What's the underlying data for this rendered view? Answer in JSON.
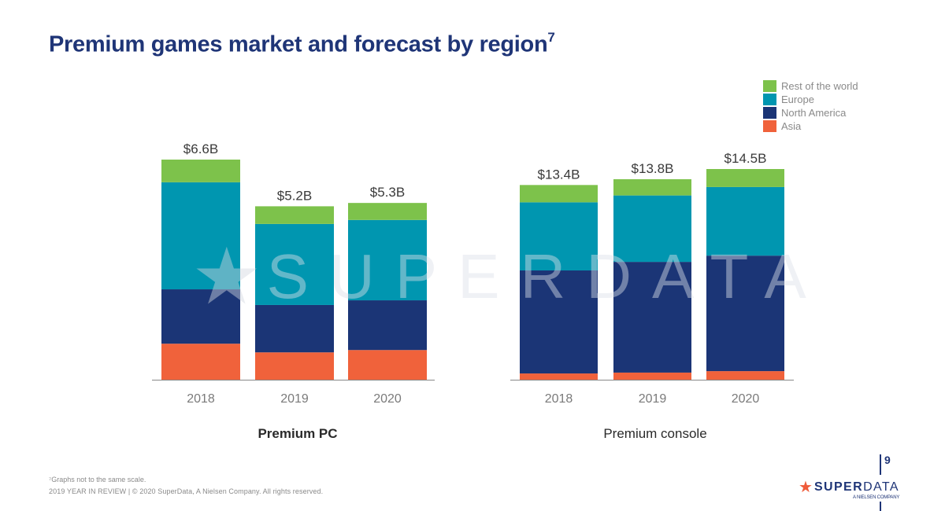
{
  "title": "Premium games market and forecast by region",
  "title_footnote_marker": "7",
  "legend": [
    {
      "label": "Rest of the world",
      "color": "#7dc24b"
    },
    {
      "label": "Europe",
      "color": "#0096b0"
    },
    {
      "label": "North America",
      "color": "#1b3576"
    },
    {
      "label": "Asia",
      "color": "#f0623b"
    }
  ],
  "watermark": {
    "icon": "star-icon",
    "text": "SUPERDATA"
  },
  "footnote": "⁷Graphs not to the same scale.",
  "footer": "2019 YEAR IN REVIEW  |  © 2020 SuperData, A Nielsen Company. All rights reserved.",
  "page_number": "9",
  "logo": {
    "icon": "star-icon",
    "bold": "SUPER",
    "light": "DATA",
    "sub": "A NIELSEN COMPANY"
  },
  "chart_data": [
    {
      "type": "bar",
      "stacked": true,
      "title": "Premium PC",
      "xlabel": "",
      "ylabel": "",
      "categories": [
        "2018",
        "2019",
        "2020"
      ],
      "totals_labels": [
        "$6.6B",
        "$5.2B",
        "$5.3B"
      ],
      "totals": [
        6.6,
        5.2,
        5.3
      ],
      "series": [
        {
          "name": "Asia",
          "values": [
            1.08,
            0.82,
            0.89
          ]
        },
        {
          "name": "North America",
          "values": [
            1.63,
            1.42,
            1.49
          ]
        },
        {
          "name": "Europe",
          "values": [
            3.21,
            2.43,
            2.41
          ]
        },
        {
          "name": "Rest of the world",
          "values": [
            0.68,
            0.53,
            0.51
          ]
        }
      ],
      "ylim": [
        0,
        6.6
      ],
      "grid": false,
      "legend": "top-right"
    },
    {
      "type": "bar",
      "stacked": true,
      "title": "Premium console",
      "xlabel": "",
      "ylabel": "",
      "categories": [
        "2018",
        "2019",
        "2020"
      ],
      "totals_labels": [
        "$13.4B",
        "$13.8B",
        "$14.5B"
      ],
      "totals": [
        13.4,
        13.8,
        14.5
      ],
      "series": [
        {
          "name": "Asia",
          "values": [
            0.43,
            0.49,
            0.59
          ]
        },
        {
          "name": "North America",
          "values": [
            7.09,
            7.62,
            7.95
          ]
        },
        {
          "name": "Europe",
          "values": [
            4.69,
            4.57,
            4.72
          ]
        },
        {
          "name": "Rest of the world",
          "values": [
            1.19,
            1.12,
            1.24
          ]
        }
      ],
      "ylim": [
        0,
        14.5
      ],
      "grid": false,
      "legend": "top-right"
    }
  ]
}
